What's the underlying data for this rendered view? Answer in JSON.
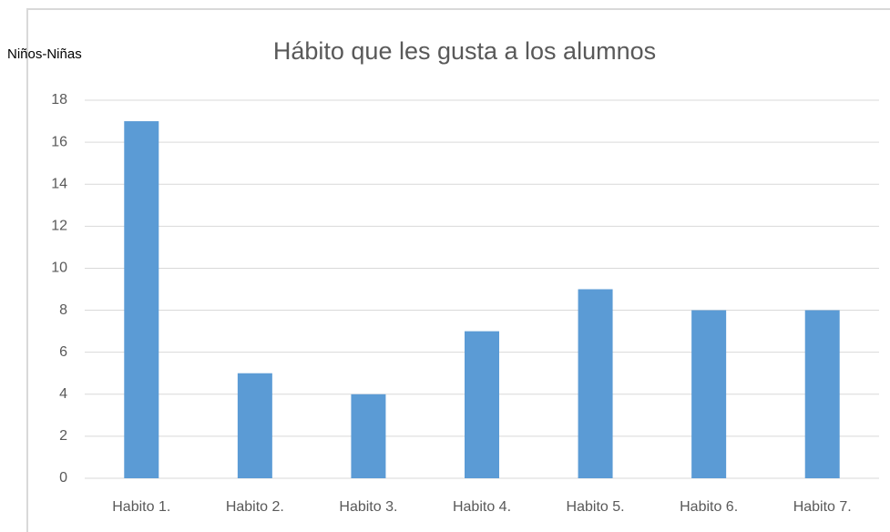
{
  "chart_data": {
    "type": "bar",
    "title": "Hábito que les gusta a los alumnos",
    "ylabel": "Niños-Niñas",
    "categories": [
      "Habito 1.",
      "Habito 2.",
      "Habito 3.",
      "Habito 4.",
      "Habito 5.",
      "Habito 6.",
      "Habito 7."
    ],
    "values": [
      17,
      5,
      4,
      7,
      9,
      8,
      8
    ],
    "color": "#5b9bd5",
    "ylim": [
      0,
      18
    ],
    "yticks": [
      0,
      2,
      4,
      6,
      8,
      10,
      12,
      14,
      16,
      18
    ],
    "grid": true
  }
}
